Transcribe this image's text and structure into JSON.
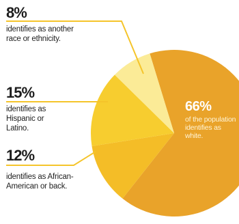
{
  "chart_data": {
    "type": "pie",
    "categories": [
      "white",
      "African-American or back",
      "Hispanic or Latino",
      "another race or ethnicity"
    ],
    "values": [
      66,
      12,
      15,
      8
    ],
    "colors": [
      "#e9a32a",
      "#f4bd27",
      "#f7cd2f",
      "#fbeb97"
    ],
    "leader_color": "#f5c42a",
    "annotations": [
      {
        "percent": "8%",
        "text": "identifies as another race or ethnicity."
      },
      {
        "percent": "15%",
        "text": "identifies as Hispanic or Latino."
      },
      {
        "percent": "12%",
        "text": "identifies as African-American or back."
      },
      {
        "percent": "66%",
        "text": "of the population identifies as white."
      }
    ]
  }
}
